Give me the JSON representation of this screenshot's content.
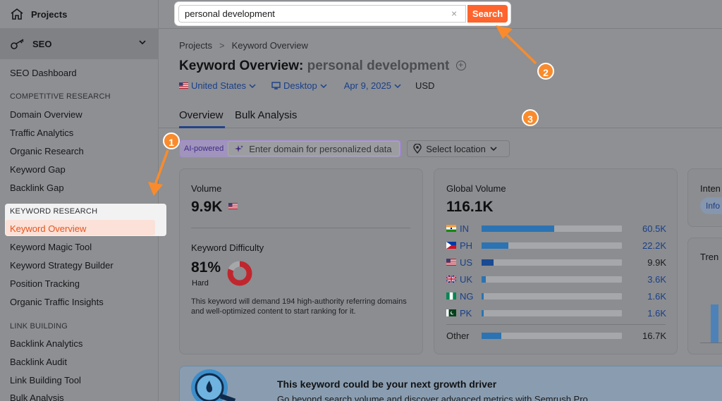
{
  "sidebar": {
    "projects_label": "Projects",
    "seo_label": "SEO",
    "seo_dashboard": "SEO Dashboard",
    "competitive_head": "COMPETITIVE RESEARCH",
    "competitive_items": [
      "Domain Overview",
      "Traffic Analytics",
      "Organic Research",
      "Keyword Gap",
      "Backlink Gap"
    ],
    "keyword_head": "KEYWORD RESEARCH",
    "keyword_items": [
      "Keyword Overview",
      "Keyword Magic Tool",
      "Keyword Strategy Builder",
      "Position Tracking",
      "Organic Traffic Insights"
    ],
    "link_head": "LINK BUILDING",
    "link_items": [
      "Backlink Analytics",
      "Backlink Audit",
      "Link Building Tool",
      "Bulk Analysis"
    ]
  },
  "search": {
    "value": "personal development",
    "clear_glyph": "×",
    "button_label": "Search"
  },
  "breadcrumb": {
    "root": "Projects",
    "sep": ">",
    "current": "Keyword Overview"
  },
  "header": {
    "title": "Keyword Overview:",
    "keyword": "personal development",
    "add_glyph": "+"
  },
  "filters": {
    "country": "United States",
    "device": "Desktop",
    "date": "Apr 9, 2025",
    "currency": "USD"
  },
  "tabs": [
    "Overview",
    "Bulk Analysis"
  ],
  "ai": {
    "label": "AI-powered",
    "placeholder": "Enter domain for personalized data",
    "location": "Select location"
  },
  "volume_card": {
    "label": "Volume",
    "value": "9.9K",
    "kd_label": "Keyword Difficulty",
    "kd_value": "81%",
    "kd_level": "Hard",
    "kd_percent": 81,
    "description": "This keyword will demand 194 high-authority referring domains and well-optimized content to start ranking for it."
  },
  "global_card": {
    "label": "Global Volume",
    "value": "116.1K",
    "rows": [
      {
        "code": "IN",
        "value": "60.5K",
        "share": 0.52
      },
      {
        "code": "PH",
        "value": "22.2K",
        "share": 0.19
      },
      {
        "code": "US",
        "value": "9.9K",
        "share": 0.085
      },
      {
        "code": "UK",
        "value": "3.6K",
        "share": 0.03
      },
      {
        "code": "NG",
        "value": "1.6K",
        "share": 0.014
      },
      {
        "code": "PK",
        "value": "1.6K",
        "share": 0.014
      }
    ],
    "other_label": "Other",
    "other_value": "16.7K",
    "other_share": 0.14
  },
  "intent_card": {
    "label": "Inten",
    "badge": "Info"
  },
  "trend_card": {
    "label": "Tren"
  },
  "banner": {
    "title": "This keyword could be your next growth driver",
    "subtitle": "Go beyond search volume and discover advanced metrics with Semrush Pro"
  },
  "markers": [
    "1",
    "2",
    "3"
  ],
  "colors": {
    "accent": "#ff642d",
    "link": "#1a3f8a",
    "bar": "#2b73b2",
    "marker": "#f98b2c",
    "kd_ring": "#c0262e"
  }
}
